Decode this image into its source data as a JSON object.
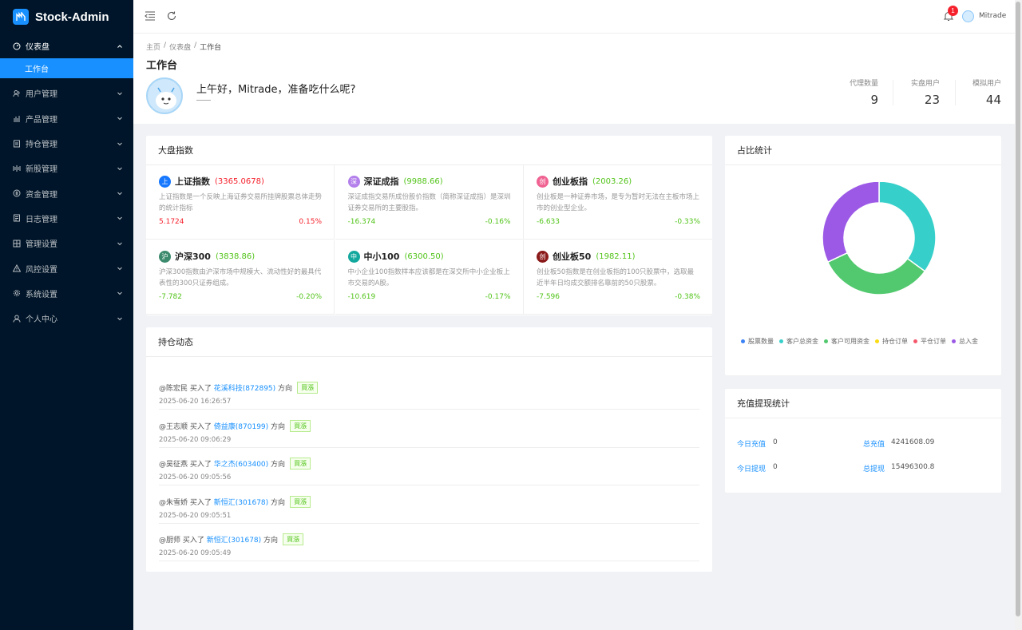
{
  "app": {
    "name": "Stock-Admin"
  },
  "sidebar": {
    "items": [
      {
        "label": "仪表盘",
        "icon": "dashboard-icon"
      },
      {
        "label": "用户管理",
        "icon": "users-icon"
      },
      {
        "label": "产品管理",
        "icon": "chart-icon"
      },
      {
        "label": "持仓管理",
        "icon": "position-icon"
      },
      {
        "label": "新股管理",
        "icon": "new-stock-icon"
      },
      {
        "label": "资金管理",
        "icon": "money-icon"
      },
      {
        "label": "日志管理",
        "icon": "log-icon"
      },
      {
        "label": "管理设置",
        "icon": "settings-grid-icon"
      },
      {
        "label": "风控设置",
        "icon": "warning-icon"
      },
      {
        "label": "系统设置",
        "icon": "gear-icon"
      },
      {
        "label": "个人中心",
        "icon": "user-icon"
      }
    ],
    "active_sub": "工作台"
  },
  "header": {
    "notification_count": "1",
    "username": "Mitrade"
  },
  "breadcrumb": [
    "主页",
    "/",
    "仪表盘",
    "/",
    "工作台"
  ],
  "page": {
    "title": "工作台",
    "greeting": "上午好，Mitrade，准备吃什么呢?",
    "stats": [
      {
        "label": "代理数量",
        "value": "9"
      },
      {
        "label": "实盘用户",
        "value": "23"
      },
      {
        "label": "模拟用户",
        "value": "44"
      }
    ]
  },
  "market": {
    "title": "大盘指数",
    "indices": [
      {
        "logo": "上",
        "color": "#1677ff",
        "name": "上证指数",
        "value": "(3365.0678)",
        "trend": "up",
        "desc": "上证指数是一个反映上海证券交易所挂牌股票总体走势的统计指标",
        "change": "5.1724",
        "pct": "0.15%"
      },
      {
        "logo": "深",
        "color": "#b37feb",
        "name": "深证成指",
        "value": "(9988.66)",
        "trend": "down",
        "desc": "深证成指交易所成份股价指数（简称深证成指）是深圳证券交易所的主要股指。",
        "change": "-16.374",
        "pct": "-0.16%"
      },
      {
        "logo": "创",
        "color": "#f06292",
        "name": "创业板指",
        "value": "(2003.26)",
        "trend": "down",
        "desc": "创业板是一种证券市场，是专为暂时无法在主板市场上市的创业型企业。",
        "change": "-6.633",
        "pct": "-0.33%"
      },
      {
        "logo": "沪",
        "color": "#3d8b6e",
        "name": "沪深300",
        "value": "(3838.86)",
        "trend": "down",
        "desc": "沪深300指数由沪深市场中规模大、流动性好的最具代表性的300只证券组成。",
        "change": "-7.782",
        "pct": "-0.20%"
      },
      {
        "logo": "中",
        "color": "#13a89e",
        "name": "中小100",
        "value": "(6300.50)",
        "trend": "down",
        "desc": "中小企业100指数样本应该都是在深交所中小企业板上市交易的A股。",
        "change": "-10.619",
        "pct": "-0.17%"
      },
      {
        "logo": "创",
        "color": "#8b1a1a",
        "name": "创业板50",
        "value": "(1982.11)",
        "trend": "down",
        "desc": "创业板50指数是在创业板指的100只股票中，选取最近半年日均成交额排名靠前的50只股票。",
        "change": "-7.596",
        "pct": "-0.38%"
      }
    ]
  },
  "dynamics": {
    "title": "持仓动态",
    "items": [
      {
        "user": "@陈宏民",
        "action": "买入了",
        "stock": "花溪科技(872895)",
        "direction": "方向",
        "tag": "買漲",
        "time": "2025-06-20 16:26:57"
      },
      {
        "user": "@王志顺",
        "action": "买入了",
        "stock": "倚益康(870199)",
        "direction": "方向",
        "tag": "買漲",
        "time": "2025-06-20 09:06:29"
      },
      {
        "user": "@吴征燕",
        "action": "买入了",
        "stock": "华之杰(603400)",
        "direction": "方向",
        "tag": "買漲",
        "time": "2025-06-20 09:05:56"
      },
      {
        "user": "@朱雪娇",
        "action": "买入了",
        "stock": "新恒汇(301678)",
        "direction": "方向",
        "tag": "買漲",
        "time": "2025-06-20 09:05:51"
      },
      {
        "user": "@厨师",
        "action": "买入了",
        "stock": "新恒汇(301678)",
        "direction": "方向",
        "tag": "買漲",
        "time": "2025-06-20 09:05:49"
      }
    ]
  },
  "ratio": {
    "title": "占比统计",
    "legend": [
      {
        "label": "股票数量",
        "color": "#3b82f6"
      },
      {
        "label": "客户总资金",
        "color": "#36cfc9"
      },
      {
        "label": "客户可用资金",
        "color": "#52c96e"
      },
      {
        "label": "持仓订单",
        "color": "#fadb14"
      },
      {
        "label": "平仓订单",
        "color": "#f5576c"
      },
      {
        "label": "总入金",
        "color": "#9b59e6"
      }
    ]
  },
  "chart_data": {
    "type": "pie",
    "title": "占比统计",
    "labels": [
      "股票数量",
      "客户总资金",
      "客户可用资金",
      "持仓订单",
      "平仓订单",
      "总入金"
    ],
    "values": [
      0,
      35,
      33,
      0,
      0,
      32
    ],
    "colors": [
      "#3b82f6",
      "#36cfc9",
      "#52c96e",
      "#fadb14",
      "#f5576c",
      "#9b59e6"
    ]
  },
  "recharge": {
    "title": "充值提现统计",
    "rows": [
      {
        "label": "今日充值",
        "value": "0"
      },
      {
        "label": "总充值",
        "value": "4241608.09"
      },
      {
        "label": "今日提现",
        "value": "0"
      },
      {
        "label": "总提现",
        "value": "15496300.8"
      }
    ]
  }
}
